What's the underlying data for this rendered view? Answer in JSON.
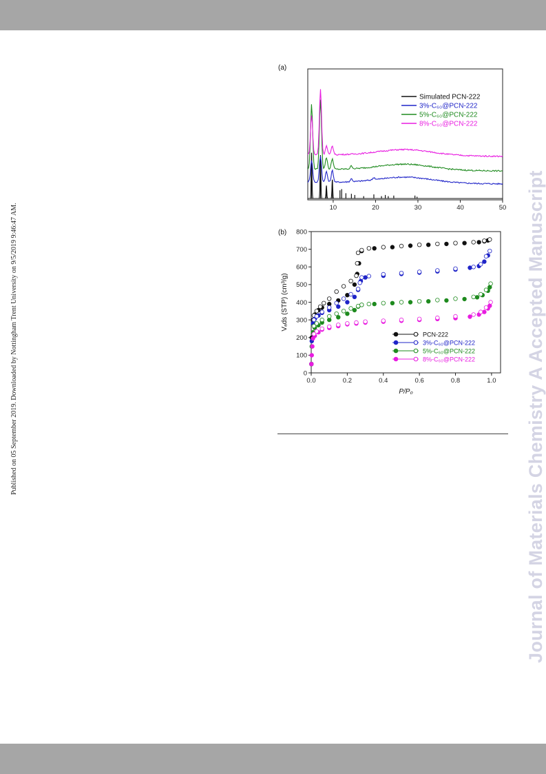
{
  "page": {
    "published_note": "Published on 05 September 2019. Downloaded by Nottingham Trent University on 9/5/2019 9:46:47 AM.",
    "watermark": "Journal of Materials Chemistry A Accepted Manuscript"
  },
  "colors": {
    "black": "#111111",
    "blue": "#1f24c8",
    "green": "#1e8a1e",
    "magenta": "#e81ce0",
    "bar": "#a6a6a6",
    "watermark": "#d4d4e4"
  },
  "chart_data": [
    {
      "type": "line",
      "panel_label": "(a)",
      "xlabel": "",
      "ylabel": "",
      "xlim": [
        4,
        50
      ],
      "xticks": [
        "10",
        "20",
        "30",
        "40",
        "50"
      ],
      "legend_position": "top-right",
      "series": [
        {
          "name": "Simulated PCN-222",
          "color": "#111111",
          "baseline": 0,
          "peaks": [
            [
              4.9,
              78
            ],
            [
              7.0,
              74
            ],
            [
              8.4,
              22
            ],
            [
              9.8,
              32
            ],
            [
              11.6,
              14
            ],
            [
              12.0,
              16
            ],
            [
              13.0,
              9
            ],
            [
              14.3,
              8
            ],
            [
              15.1,
              6
            ],
            [
              17.2,
              4
            ],
            [
              19.6,
              7
            ],
            [
              21.4,
              4
            ],
            [
              22.3,
              6
            ],
            [
              23.0,
              4
            ],
            [
              24.3,
              5
            ],
            [
              29.3,
              5
            ],
            [
              29.8,
              3
            ]
          ]
        },
        {
          "name": "3%-C₆₀@PCN-222",
          "color": "#1f24c8",
          "baseline": 28,
          "peaks": [
            [
              4.9,
              38
            ],
            [
              7.0,
              45
            ],
            [
              8.4,
              18
            ],
            [
              9.8,
              20
            ],
            [
              14.3,
              5
            ],
            [
              19.6,
              4
            ]
          ]
        },
        {
          "name": "5%-C₆₀@PCN-222",
          "color": "#1e8a1e",
          "baseline": 50,
          "peaks": [
            [
              4.9,
              112
            ],
            [
              7.0,
              118
            ],
            [
              8.4,
              20
            ],
            [
              9.8,
              18
            ],
            [
              14.3,
              5
            ]
          ]
        },
        {
          "name": "8%-C₆₀@PCN-222",
          "color": "#e81ce0",
          "baseline": 75,
          "peaks": [
            [
              4.9,
              68
            ],
            [
              7.0,
              112
            ],
            [
              8.4,
              15
            ],
            [
              9.8,
              15
            ]
          ]
        }
      ]
    },
    {
      "type": "scatter",
      "panel_label": "(b)",
      "xlabel": "P/P₀",
      "ylabel": "Vₐds (STP) (cm³/g)",
      "xlim": [
        0,
        1.05
      ],
      "ylim": [
        0,
        800
      ],
      "xticks": [
        "0.0",
        "0.2",
        "0.4",
        "0.6",
        "0.8",
        "1.0"
      ],
      "yticks": [
        "0",
        "100",
        "200",
        "300",
        "400",
        "500",
        "600",
        "700",
        "800"
      ],
      "legend_position": "bottom-right",
      "series": [
        {
          "name": "PCN-222",
          "color": "#111111",
          "adsorption": [
            [
              0.001,
              50
            ],
            [
              0.003,
              200
            ],
            [
              0.01,
              300
            ],
            [
              0.02,
              330
            ],
            [
              0.04,
              355
            ],
            [
              0.06,
              370
            ],
            [
              0.1,
              390
            ],
            [
              0.15,
              410
            ],
            [
              0.2,
              440
            ],
            [
              0.24,
              500
            ],
            [
              0.255,
              560
            ],
            [
              0.265,
              620
            ],
            [
              0.28,
              690
            ],
            [
              0.35,
              705
            ],
            [
              0.45,
              712
            ],
            [
              0.55,
              720
            ],
            [
              0.65,
              725
            ],
            [
              0.75,
              730
            ],
            [
              0.85,
              735
            ],
            [
              0.93,
              740
            ],
            [
              0.96,
              745
            ],
            [
              0.98,
              750
            ]
          ],
          "desorption": [
            [
              0.99,
              755
            ],
            [
              0.96,
              748
            ],
            [
              0.9,
              740
            ],
            [
              0.8,
              735
            ],
            [
              0.7,
              730
            ],
            [
              0.6,
              725
            ],
            [
              0.5,
              718
            ],
            [
              0.4,
              712
            ],
            [
              0.32,
              705
            ],
            [
              0.28,
              695
            ],
            [
              0.26,
              680
            ],
            [
              0.255,
              620
            ],
            [
              0.25,
              550
            ],
            [
              0.22,
              520
            ],
            [
              0.18,
              490
            ],
            [
              0.14,
              460
            ],
            [
              0.1,
              420
            ],
            [
              0.07,
              395
            ],
            [
              0.05,
              375
            ],
            [
              0.03,
              350
            ],
            [
              0.015,
              325
            ]
          ]
        },
        {
          "name": "3%-C₆₀@PCN-222",
          "color": "#1f24c8",
          "adsorption": [
            [
              0.001,
              50
            ],
            [
              0.003,
              180
            ],
            [
              0.01,
              280
            ],
            [
              0.02,
              305
            ],
            [
              0.04,
              325
            ],
            [
              0.06,
              340
            ],
            [
              0.1,
              355
            ],
            [
              0.15,
              375
            ],
            [
              0.2,
              400
            ],
            [
              0.24,
              430
            ],
            [
              0.26,
              470
            ],
            [
              0.275,
              520
            ],
            [
              0.3,
              540
            ],
            [
              0.4,
              550
            ],
            [
              0.5,
              560
            ],
            [
              0.6,
              568
            ],
            [
              0.7,
              575
            ],
            [
              0.8,
              585
            ],
            [
              0.88,
              595
            ],
            [
              0.93,
              605
            ],
            [
              0.96,
              630
            ],
            [
              0.98,
              665
            ]
          ],
          "desorption": [
            [
              0.99,
              690
            ],
            [
              0.97,
              660
            ],
            [
              0.94,
              615
            ],
            [
              0.9,
              600
            ],
            [
              0.8,
              590
            ],
            [
              0.7,
              580
            ],
            [
              0.6,
              572
            ],
            [
              0.5,
              565
            ],
            [
              0.4,
              558
            ],
            [
              0.32,
              548
            ],
            [
              0.28,
              540
            ],
            [
              0.27,
              510
            ],
            [
              0.26,
              475
            ],
            [
              0.22,
              445
            ],
            [
              0.18,
              420
            ],
            [
              0.14,
              395
            ],
            [
              0.1,
              370
            ],
            [
              0.06,
              345
            ],
            [
              0.03,
              320
            ],
            [
              0.015,
              300
            ]
          ]
        },
        {
          "name": "5%-C₆₀@PCN-222",
          "color": "#1e8a1e",
          "adsorption": [
            [
              0.001,
              50
            ],
            [
              0.003,
              150
            ],
            [
              0.01,
              230
            ],
            [
              0.02,
              255
            ],
            [
              0.04,
              270
            ],
            [
              0.06,
              285
            ],
            [
              0.1,
              300
            ],
            [
              0.15,
              315
            ],
            [
              0.2,
              335
            ],
            [
              0.24,
              355
            ],
            [
              0.26,
              375
            ],
            [
              0.28,
              385
            ],
            [
              0.35,
              390
            ],
            [
              0.45,
              395
            ],
            [
              0.55,
              400
            ],
            [
              0.65,
              405
            ],
            [
              0.75,
              410
            ],
            [
              0.85,
              418
            ],
            [
              0.92,
              428
            ],
            [
              0.95,
              440
            ],
            [
              0.98,
              465
            ],
            [
              0.99,
              485
            ]
          ],
          "desorption": [
            [
              0.995,
              505
            ],
            [
              0.97,
              470
            ],
            [
              0.94,
              445
            ],
            [
              0.9,
              430
            ],
            [
              0.8,
              420
            ],
            [
              0.7,
              412
            ],
            [
              0.6,
              405
            ],
            [
              0.5,
              400
            ],
            [
              0.4,
              395
            ],
            [
              0.32,
              390
            ],
            [
              0.28,
              385
            ],
            [
              0.26,
              378
            ],
            [
              0.22,
              365
            ],
            [
              0.18,
              350
            ],
            [
              0.14,
              335
            ],
            [
              0.1,
              320
            ],
            [
              0.06,
              300
            ],
            [
              0.03,
              280
            ],
            [
              0.015,
              265
            ]
          ]
        },
        {
          "name": "8%-C₆₀@PCN-222",
          "color": "#e81ce0",
          "adsorption": [
            [
              0.001,
              50
            ],
            [
              0.003,
              100
            ],
            [
              0.006,
              150
            ],
            [
              0.01,
              195
            ],
            [
              0.02,
              210
            ],
            [
              0.04,
              230
            ],
            [
              0.06,
              245
            ],
            [
              0.1,
              255
            ],
            [
              0.15,
              265
            ],
            [
              0.2,
              275
            ],
            [
              0.25,
              280
            ],
            [
              0.3,
              285
            ],
            [
              0.4,
              290
            ],
            [
              0.5,
              295
            ],
            [
              0.6,
              300
            ],
            [
              0.7,
              305
            ],
            [
              0.8,
              310
            ],
            [
              0.88,
              318
            ],
            [
              0.93,
              330
            ],
            [
              0.96,
              345
            ],
            [
              0.98,
              365
            ],
            [
              0.99,
              380
            ]
          ],
          "desorption": [
            [
              0.995,
              400
            ],
            [
              0.97,
              370
            ],
            [
              0.94,
              345
            ],
            [
              0.9,
              330
            ],
            [
              0.8,
              320
            ],
            [
              0.7,
              312
            ],
            [
              0.6,
              305
            ],
            [
              0.5,
              300
            ],
            [
              0.4,
              295
            ],
            [
              0.3,
              290
            ],
            [
              0.25,
              285
            ],
            [
              0.2,
              280
            ],
            [
              0.15,
              272
            ],
            [
              0.1,
              262
            ],
            [
              0.06,
              250
            ],
            [
              0.03,
              235
            ],
            [
              0.015,
              220
            ]
          ]
        }
      ]
    }
  ]
}
